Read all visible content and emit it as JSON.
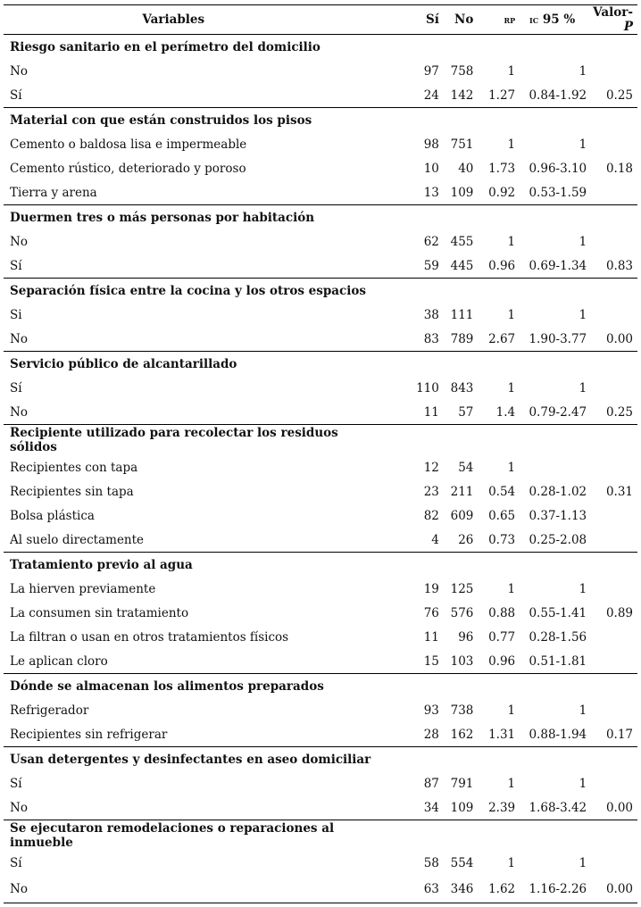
{
  "headers": {
    "variables": "Variables",
    "si": "Sí",
    "no": "No",
    "rp": "rp",
    "ic_prefix": "ic",
    "ic_suffix": " 95 %",
    "p_prefix": "Valor-",
    "p_suffix": "P"
  },
  "groups": [
    {
      "title": "Riesgo sanitario en el perímetro del domicilio",
      "rows": [
        {
          "label": "No",
          "si": "97",
          "no": "758",
          "rp": "1",
          "ic": "1",
          "p": ""
        },
        {
          "label": "Sí",
          "si": "24",
          "no": "142",
          "rp": "1.27",
          "ic": "0.84-1.92",
          "p": "0.25"
        }
      ]
    },
    {
      "title": "Material con que están construidos los pisos",
      "rows": [
        {
          "label": "Cemento o baldosa lisa e impermeable",
          "si": "98",
          "no": "751",
          "rp": "1",
          "ic": "1",
          "p": ""
        },
        {
          "label": "Cemento rústico, deteriorado y poroso",
          "si": "10",
          "no": "40",
          "rp": "1.73",
          "ic": "0.96-3.10",
          "p": "0.18"
        },
        {
          "label": "Tierra y arena",
          "si": "13",
          "no": "109",
          "rp": "0.92",
          "ic": "0.53-1.59",
          "p": ""
        }
      ]
    },
    {
      "title": "Duermen tres o más personas por habitación",
      "rows": [
        {
          "label": "No",
          "si": "62",
          "no": "455",
          "rp": "1",
          "ic": "1",
          "p": ""
        },
        {
          "label": "Sí",
          "si": "59",
          "no": "445",
          "rp": "0.96",
          "ic": "0.69-1.34",
          "p": "0.83"
        }
      ]
    },
    {
      "title": "Separación física entre la cocina y los otros espacios",
      "rows": [
        {
          "label": "Si",
          "si": "38",
          "no": "111",
          "rp": "1",
          "ic": "1",
          "p": ""
        },
        {
          "label": "No",
          "si": "83",
          "no": "789",
          "rp": "2.67",
          "ic": "1.90-3.77",
          "p": "0.00"
        }
      ]
    },
    {
      "title": "Servicio público de alcantarillado",
      "rows": [
        {
          "label": "Sí",
          "si": "110",
          "no": "843",
          "rp": "1",
          "ic": "1",
          "p": ""
        },
        {
          "label": "No",
          "si": "11",
          "no": "57",
          "rp": "1.4",
          "ic": "0.79-2.47",
          "p": "0.25"
        }
      ]
    },
    {
      "title": "Recipiente utilizado para recolectar los residuos sólidos",
      "two": true,
      "rows": [
        {
          "label": "Recipientes con tapa",
          "si": "12",
          "no": "54",
          "rp": "1",
          "ic": "",
          "p": ""
        },
        {
          "label": "Recipientes sin tapa",
          "si": "23",
          "no": "211",
          "rp": "0.54",
          "ic": "0.28-1.02",
          "p": "0.31"
        },
        {
          "label": "Bolsa plástica",
          "si": "82",
          "no": "609",
          "rp": "0.65",
          "ic": "0.37-1.13",
          "p": ""
        },
        {
          "label": "Al suelo directamente",
          "si": "4",
          "no": "26",
          "rp": "0.73",
          "ic": "0.25-2.08",
          "p": ""
        }
      ]
    },
    {
      "title": "Tratamiento previo al agua",
      "rows": [
        {
          "label": "La hierven previamente",
          "si": "19",
          "no": "125",
          "rp": "1",
          "ic": "1",
          "p": ""
        },
        {
          "label": "La consumen sin tratamiento",
          "si": "76",
          "no": "576",
          "rp": "0.88",
          "ic": "0.55-1.41",
          "p": "0.89"
        },
        {
          "label": "La filtran o usan en otros tratamientos físicos",
          "si": "11",
          "no": "96",
          "rp": "0.77",
          "ic": "0.28-1.56",
          "p": ""
        },
        {
          "label": "Le aplican cloro",
          "si": "15",
          "no": "103",
          "rp": "0.96",
          "ic": "0.51-1.81",
          "p": ""
        }
      ]
    },
    {
      "title": "Dónde se almacenan los alimentos preparados",
      "rows": [
        {
          "label": "Refrigerador",
          "si": "93",
          "no": "738",
          "rp": "1",
          "ic": "1",
          "p": ""
        },
        {
          "label": "Recipientes sin refrigerar",
          "si": "28",
          "no": "162",
          "rp": "1.31",
          "ic": "0.88-1.94",
          "p": "0.17"
        }
      ]
    },
    {
      "title": "Usan detergentes y desinfectantes en aseo domiciliar",
      "rows": [
        {
          "label": "Sí",
          "si": "87",
          "no": "791",
          "rp": "1",
          "ic": "1",
          "p": ""
        },
        {
          "label": "No",
          "si": "34",
          "no": "109",
          "rp": "2.39",
          "ic": "1.68-3.42",
          "p": "0.00"
        }
      ]
    },
    {
      "title": "Se ejecutaron remodelaciones o reparaciones al inmueble",
      "two": true,
      "rows": [
        {
          "label": "Sí",
          "si": "58",
          "no": "554",
          "rp": "1",
          "ic": "1",
          "p": ""
        },
        {
          "label": "No",
          "si": "63",
          "no": "346",
          "rp": "1.62",
          "ic": "1.16-2.26",
          "p": "0.00"
        }
      ]
    }
  ]
}
